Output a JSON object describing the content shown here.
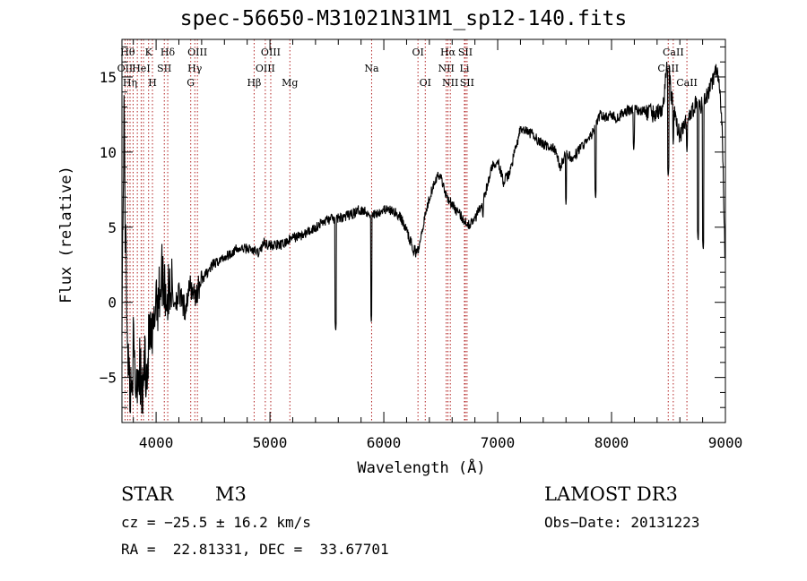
{
  "chart_data": {
    "type": "line",
    "title": "spec-56650-M31021N31M1_sp12-140.fits",
    "xlabel": "Wavelength (Å)",
    "ylabel": "Flux (relative)",
    "xlim": [
      3700,
      9000
    ],
    "ylim": [
      -8,
      17.5
    ],
    "xticks": [
      4000,
      5000,
      6000,
      7000,
      8000,
      9000
    ],
    "xtick_labels": [
      "4000",
      "5000",
      "6000",
      "7000",
      "8000",
      "9000"
    ],
    "yticks": [
      -5,
      0,
      5,
      10,
      15
    ],
    "ytick_labels": [
      "−5",
      "0",
      "5",
      "10",
      "15"
    ],
    "series": [
      {
        "name": "flux",
        "anchors": [
          [
            3700,
            0
          ],
          [
            3720,
            13
          ],
          [
            3730,
            5
          ],
          [
            3740,
            1
          ],
          [
            3760,
            -5
          ],
          [
            3780,
            -6
          ],
          [
            3800,
            -3
          ],
          [
            3820,
            -5.5
          ],
          [
            3850,
            -4
          ],
          [
            3880,
            -6.5
          ],
          [
            3900,
            -3.5
          ],
          [
            3920,
            -5
          ],
          [
            3940,
            -2
          ],
          [
            3960,
            -3
          ],
          [
            3980,
            -2
          ],
          [
            4000,
            1
          ],
          [
            4020,
            0
          ],
          [
            4050,
            2
          ],
          [
            4080,
            1
          ],
          [
            4100,
            0
          ],
          [
            4130,
            1.5
          ],
          [
            4150,
            0
          ],
          [
            4200,
            0.5
          ],
          [
            4250,
            -0.5
          ],
          [
            4300,
            1
          ],
          [
            4350,
            0.5
          ],
          [
            4400,
            1.5
          ],
          [
            4450,
            2
          ],
          [
            4500,
            2.5
          ],
          [
            4600,
            3
          ],
          [
            4700,
            3.5
          ],
          [
            4800,
            3.6
          ],
          [
            4900,
            3.3
          ],
          [
            4950,
            4
          ],
          [
            5000,
            3.8
          ],
          [
            5100,
            3.8
          ],
          [
            5200,
            4.3
          ],
          [
            5300,
            4.5
          ],
          [
            5400,
            5
          ],
          [
            5500,
            5.5
          ],
          [
            5600,
            5.6
          ],
          [
            5700,
            5.8
          ],
          [
            5800,
            6.2
          ],
          [
            5900,
            5.8
          ],
          [
            6000,
            6.2
          ],
          [
            6100,
            6
          ],
          [
            6150,
            5.6
          ],
          [
            6200,
            4.8
          ],
          [
            6260,
            3.5
          ],
          [
            6300,
            3.5
          ],
          [
            6340,
            5
          ],
          [
            6400,
            7
          ],
          [
            6450,
            8.2
          ],
          [
            6500,
            8.5
          ],
          [
            6530,
            7.5
          ],
          [
            6560,
            7
          ],
          [
            6600,
            6.5
          ],
          [
            6650,
            6
          ],
          [
            6700,
            5.5
          ],
          [
            6750,
            5.2
          ],
          [
            6800,
            5.5
          ],
          [
            6850,
            6.5
          ],
          [
            6900,
            7.5
          ],
          [
            6950,
            9
          ],
          [
            7000,
            9.5
          ],
          [
            7050,
            8
          ],
          [
            7100,
            8.5
          ],
          [
            7150,
            10
          ],
          [
            7200,
            11.5
          ],
          [
            7300,
            11.2
          ],
          [
            7400,
            10.5
          ],
          [
            7500,
            10.2
          ],
          [
            7550,
            9
          ],
          [
            7600,
            10
          ],
          [
            7650,
            9.5
          ],
          [
            7700,
            10
          ],
          [
            7750,
            10.5
          ],
          [
            7800,
            10.8
          ],
          [
            7850,
            11.5
          ],
          [
            7900,
            12.5
          ],
          [
            7950,
            12.3
          ],
          [
            8000,
            12.5
          ],
          [
            8050,
            12.2
          ],
          [
            8100,
            12.6
          ],
          [
            8150,
            12.8
          ],
          [
            8200,
            12.8
          ],
          [
            8300,
            12.7
          ],
          [
            8400,
            12.5
          ],
          [
            8450,
            13
          ],
          [
            8500,
            16.5
          ],
          [
            8520,
            14
          ],
          [
            8560,
            12.3
          ],
          [
            8600,
            11
          ],
          [
            8650,
            12
          ],
          [
            8700,
            12.5
          ],
          [
            8750,
            13.5
          ],
          [
            8800,
            13
          ],
          [
            8850,
            14
          ],
          [
            8880,
            14.5
          ],
          [
            8920,
            15.5
          ],
          [
            8950,
            14
          ],
          [
            8970,
            12
          ],
          [
            8990,
            5
          ],
          [
            9000,
            2
          ]
        ],
        "dips": [
          [
            4226,
            0.8
          ],
          [
            5170,
            4.5
          ],
          [
            5270,
            5
          ],
          [
            5577,
            -2
          ],
          [
            5890,
            -1.3
          ],
          [
            6280,
            3
          ],
          [
            6563,
            6.8
          ],
          [
            6870,
            5.5
          ],
          [
            7600,
            6.5
          ],
          [
            7860,
            6.8
          ],
          [
            8195,
            10
          ],
          [
            8498,
            8.3
          ],
          [
            8542,
            10.5
          ],
          [
            8662,
            10
          ],
          [
            8760,
            4
          ],
          [
            8805,
            3.4
          ]
        ]
      }
    ],
    "lines": [
      {
        "w": 3727,
        "label": "OII",
        "row": 1
      },
      {
        "w": 3750,
        "label": "Hθ",
        "row": 0
      },
      {
        "w": 3771,
        "label": "Hη",
        "row": 2
      },
      {
        "w": 3798,
        "label": "",
        "row": -1
      },
      {
        "w": 3835,
        "label": "",
        "row": -1
      },
      {
        "w": 3869,
        "label": "HeI",
        "row": 1
      },
      {
        "w": 3889,
        "label": "",
        "row": -1
      },
      {
        "w": 3934,
        "label": "K",
        "row": 0
      },
      {
        "w": 3968,
        "label": "H",
        "row": 2
      },
      {
        "w": 4072,
        "label": "SII",
        "row": 1
      },
      {
        "w": 4102,
        "label": "Hδ",
        "row": 0
      },
      {
        "w": 4304,
        "label": "G",
        "row": 2
      },
      {
        "w": 4340,
        "label": "Hγ",
        "row": 1
      },
      {
        "w": 4363,
        "label": "OIII",
        "row": 0
      },
      {
        "w": 4861,
        "label": "Hβ",
        "row": 2
      },
      {
        "w": 4959,
        "label": "OIII",
        "row": 1
      },
      {
        "w": 5007,
        "label": "OIII",
        "row": 0
      },
      {
        "w": 5175,
        "label": "Mg",
        "row": 2
      },
      {
        "w": 5893,
        "label": "Na",
        "row": 1
      },
      {
        "w": 6300,
        "label": "OI",
        "row": 0
      },
      {
        "w": 6364,
        "label": "OI",
        "row": 2
      },
      {
        "w": 6548,
        "label": "NII",
        "row": 1
      },
      {
        "w": 6563,
        "label": "Hα",
        "row": 0
      },
      {
        "w": 6584,
        "label": "NII",
        "row": 2
      },
      {
        "w": 6708,
        "label": "Li",
        "row": 1
      },
      {
        "w": 6716,
        "label": "SII",
        "row": 0
      },
      {
        "w": 6731,
        "label": "SII",
        "row": 2
      },
      {
        "w": 8498,
        "label": "CaII",
        "row": 1
      },
      {
        "w": 8542,
        "label": "CaII",
        "row": 0
      },
      {
        "w": 8662,
        "label": "CaII",
        "row": 2
      }
    ],
    "line_color": "#b22222"
  },
  "info": {
    "class": "STAR",
    "subclass": "M3",
    "survey": "LAMOST DR3",
    "cz": "cz = −25.5 ± 16.2 km/s",
    "obs_date": "Obs−Date: 20131223",
    "coords": "RA =  22.81331, DEC =  33.67701"
  }
}
